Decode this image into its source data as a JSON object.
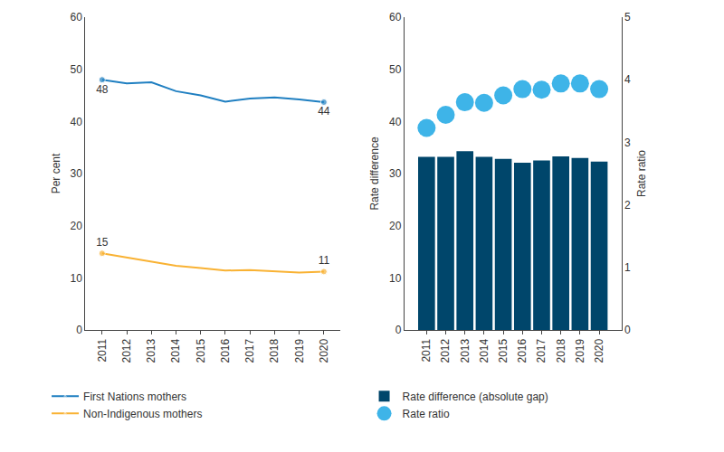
{
  "chart_data": [
    {
      "type": "line",
      "categories": [
        "2011",
        "2012",
        "2013",
        "2014",
        "2015",
        "2016",
        "2017",
        "2018",
        "2019",
        "2020"
      ],
      "ylabel": "Per cent",
      "ylim": [
        0,
        60
      ],
      "yticks": [
        0,
        10,
        20,
        30,
        40,
        50,
        60
      ],
      "grid": false,
      "legend": "bottom left",
      "series": [
        {
          "name": "First Nations mothers",
          "color": "#1f7fc1",
          "values": [
            48,
            47.3,
            47.5,
            45.8,
            45.0,
            43.8,
            44.4,
            44.6,
            44.2,
            43.7
          ],
          "value_labels": [
            "48",
            null,
            null,
            null,
            null,
            null,
            null,
            null,
            null,
            "44"
          ]
        },
        {
          "name": "Non-Indigenous mothers",
          "color": "#f9b233",
          "values": [
            14.7,
            13.9,
            13.0,
            12.3,
            11.9,
            11.4,
            11.5,
            11.2,
            11.0,
            11.2
          ],
          "value_labels": [
            "15",
            null,
            null,
            null,
            null,
            null,
            null,
            null,
            null,
            "11"
          ]
        }
      ]
    },
    {
      "type": "bar",
      "categories": [
        "2011",
        "2012",
        "2013",
        "2014",
        "2015",
        "2016",
        "2017",
        "2018",
        "2019",
        "2020"
      ],
      "ylabel": "Rate difference",
      "y2label": "Rate ratio",
      "ylim": [
        0,
        60
      ],
      "yticks": [
        0,
        10,
        20,
        30,
        40,
        50,
        60
      ],
      "y2lim": [
        0,
        5
      ],
      "y2ticks": [
        0,
        1,
        2,
        3,
        4,
        5
      ],
      "grid": false,
      "legend": "bottom left",
      "series": [
        {
          "name": "Rate difference (absolute gap)",
          "type": "bar",
          "color": "#00466b",
          "values": [
            33.2,
            33.2,
            34.3,
            33.2,
            32.8,
            32.1,
            32.5,
            33.3,
            33.0,
            32.3
          ]
        },
        {
          "name": "Rate ratio",
          "type": "scatter",
          "axis": "y2",
          "color": "#3eb4e8",
          "values": [
            3.23,
            3.44,
            3.64,
            3.63,
            3.75,
            3.85,
            3.84,
            3.94,
            3.94,
            3.85
          ]
        }
      ]
    }
  ]
}
